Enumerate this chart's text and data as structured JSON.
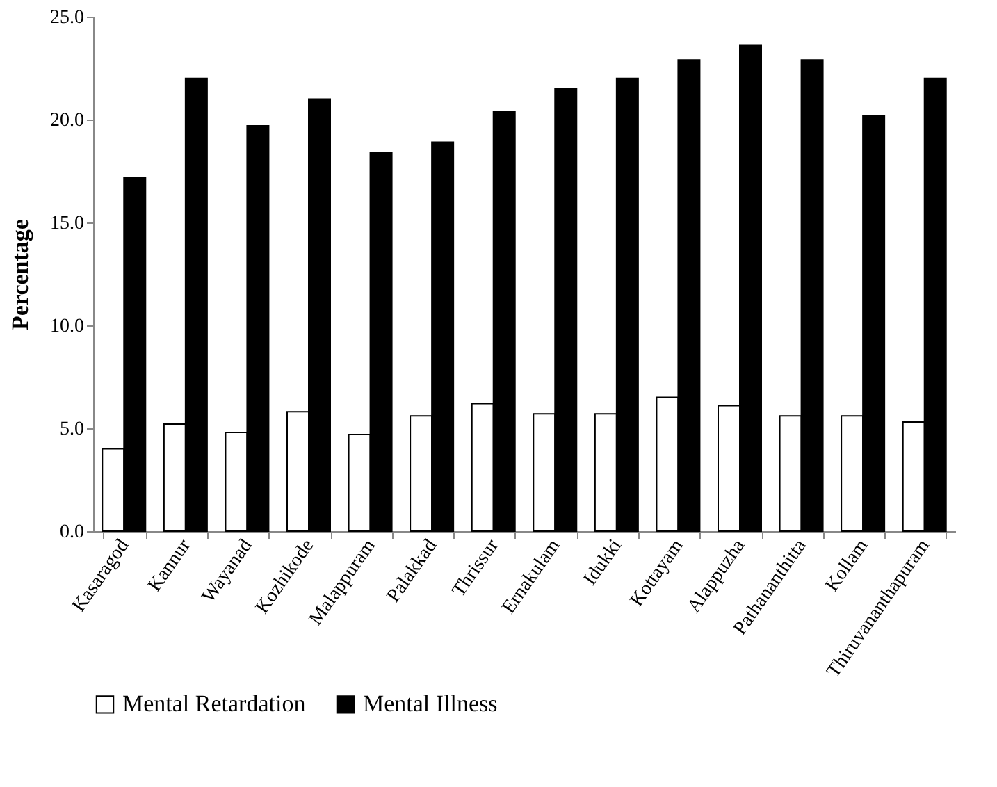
{
  "chart_data": {
    "type": "bar",
    "ylabel": "Percentage",
    "categories": [
      "Kasaragod",
      "Kannur",
      "Wayanad",
      "Kozhikode",
      "Malappuram",
      "Palakkad",
      "Thrissur",
      "Ernakulam",
      "Idukki",
      "Kottayam",
      "Alappuzha",
      "Pathananthitta",
      "Kollam",
      "Thiruvananthapuram"
    ],
    "series": [
      {
        "name": "Mental Retardation",
        "color": "#ffffff",
        "values": [
          4.0,
          5.2,
          4.8,
          5.8,
          4.7,
          5.6,
          6.2,
          5.7,
          5.7,
          6.5,
          6.1,
          5.6,
          5.6,
          5.3
        ]
      },
      {
        "name": "Mental Illness",
        "color": "#000000",
        "values": [
          17.2,
          22.0,
          19.7,
          21.0,
          18.4,
          18.9,
          20.4,
          21.5,
          22.0,
          22.9,
          23.6,
          22.9,
          20.2,
          22.0
        ]
      }
    ],
    "ylim": [
      0,
      25
    ],
    "yticks": [
      {
        "value": 0,
        "label": "0.0"
      },
      {
        "value": 5,
        "label": "5.0"
      },
      {
        "value": 10,
        "label": "10.0"
      },
      {
        "value": 15,
        "label": "15.0"
      },
      {
        "value": 20,
        "label": "20.0"
      },
      {
        "value": 25,
        "label": "25.0"
      }
    ],
    "grid": false,
    "legend": "bottom"
  }
}
